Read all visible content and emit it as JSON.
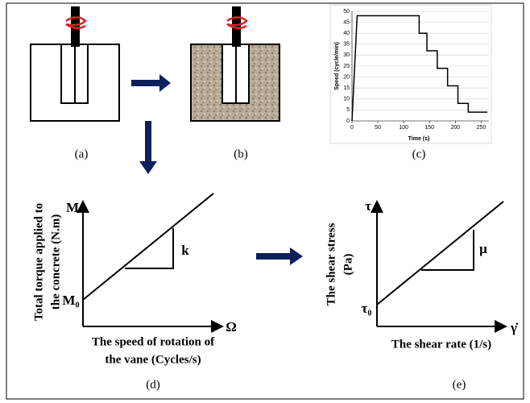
{
  "panels": {
    "a": "(a)",
    "b": "(b)",
    "c": "(c)",
    "d": "(d)",
    "e": "(e)"
  },
  "chart_data": {
    "type": "line",
    "xlabel": "Time (s)",
    "ylabel": "Speed (cycle/min)",
    "x": [
      0,
      10,
      130,
      130,
      145,
      145,
      165,
      165,
      185,
      185,
      205,
      205,
      225,
      225,
      245,
      245,
      262
    ],
    "series": [
      {
        "color": "#000000",
        "values": [
          0,
          48,
          48,
          40,
          40,
          32,
          32,
          24,
          24,
          16,
          16,
          8,
          8,
          4,
          4,
          4,
          4
        ]
      }
    ],
    "xlim": [
      0,
      265
    ],
    "ylim": [
      0,
      50
    ],
    "xticks": [
      0,
      50,
      100,
      150,
      200,
      250
    ],
    "yticks": [
      0,
      5,
      10,
      15,
      20,
      25,
      30,
      35,
      40,
      45,
      50
    ],
    "grid": true
  },
  "torque_plot": {
    "y_symbol": "M",
    "intercept": "M₀",
    "slope": "k",
    "x_symbol": "Ω",
    "y_label": [
      "Total torque applied to",
      "the concrete (N.m)"
    ],
    "x_label": [
      "The speed of rotation of",
      "the vane (Cycles/s)"
    ]
  },
  "shear_plot": {
    "y_symbol": "τ",
    "intercept": "τ₀",
    "slope": "μ",
    "x_symbol": "γ̇",
    "y_label": [
      "The shear stress",
      "(Pa)"
    ],
    "x_label": "The shear rate (1/s)"
  }
}
